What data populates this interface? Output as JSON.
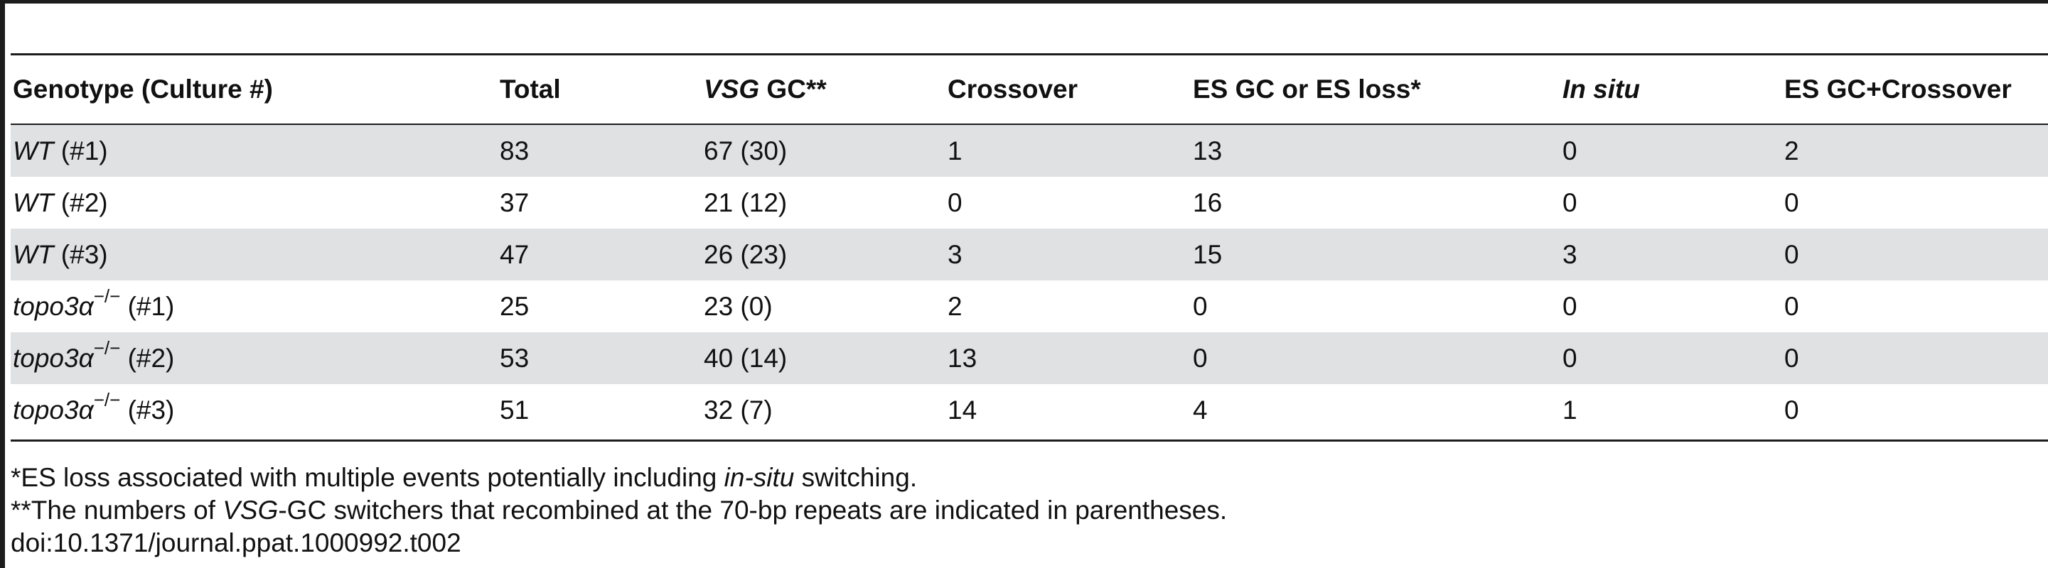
{
  "table": {
    "header": {
      "genotype": "Genotype (Culture #)",
      "total": "Total",
      "vsg_gc_italic": "VSG",
      "vsg_gc_rest": " GC**",
      "crossover": "Crossover",
      "es_gc_or_loss": "ES GC or ES loss*",
      "in_situ": "In situ",
      "es_gc_crossover": "ES GC+Crossover"
    },
    "rows": [
      {
        "genotype": "WT",
        "sup": "",
        "culture": " (#1)",
        "total": "83",
        "vsg_gc": "67 (30)",
        "crossover": "1",
        "es_gc_or_loss": "13",
        "in_situ": "0",
        "es_gc_crossover": "2"
      },
      {
        "genotype": "WT",
        "sup": "",
        "culture": " (#2)",
        "total": "37",
        "vsg_gc": "21 (12)",
        "crossover": "0",
        "es_gc_or_loss": "16",
        "in_situ": "0",
        "es_gc_crossover": "0"
      },
      {
        "genotype": "WT",
        "sup": "",
        "culture": " (#3)",
        "total": "47",
        "vsg_gc": "26 (23)",
        "crossover": "3",
        "es_gc_or_loss": "15",
        "in_situ": "3",
        "es_gc_crossover": "0"
      },
      {
        "genotype": "topo3α",
        "sup": "−/−",
        "culture": " (#1)",
        "total": "25",
        "vsg_gc": "23 (0)",
        "crossover": "2",
        "es_gc_or_loss": "0",
        "in_situ": "0",
        "es_gc_crossover": "0"
      },
      {
        "genotype": "topo3α",
        "sup": "−/−",
        "culture": " (#2)",
        "total": "53",
        "vsg_gc": "40 (14)",
        "crossover": "13",
        "es_gc_or_loss": "0",
        "in_situ": "0",
        "es_gc_crossover": "0"
      },
      {
        "genotype": "topo3α",
        "sup": "−/−",
        "culture": " (#3)",
        "total": "51",
        "vsg_gc": "32 (7)",
        "crossover": "14",
        "es_gc_or_loss": "4",
        "in_situ": "1",
        "es_gc_crossover": "0"
      }
    ]
  },
  "footnotes": {
    "note1_pre": "*ES loss associated with multiple events potentially including ",
    "note1_italic": "in-situ",
    "note1_post": " switching.",
    "note2_pre": "**The numbers of ",
    "note2_italic": "VSG",
    "note2_post": "-GC switchers that recombined at the 70-bp repeats are indicated in parentheses.",
    "doi": "doi:10.1371/journal.ppat.1000992.t002"
  },
  "colors": {
    "shaded_row": "#e0e1e3",
    "rules": "#1c1c1c"
  }
}
